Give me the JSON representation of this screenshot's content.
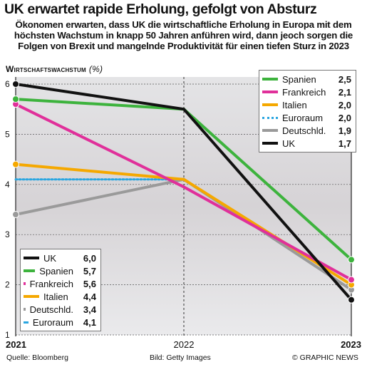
{
  "header": {
    "title": "UK erwartet rapide Erholung, gefolgt von Absturz",
    "subtitle": "Ökonomen erwarten, dass UK die wirtschaftliche Erholung  in Europa mit dem höchsten Wachstum in knapp 50 Jahren anführen wird, dann jeoch sorgen die Folgen von Brexit und mangelnde Produktivität für einen tiefen Sturz in 2023"
  },
  "footer": {
    "source": "Quelle: Bloomberg",
    "image_credit": "Bild: Getty Images",
    "copyright": "© GRAPHIC NEWS"
  },
  "chart_data": {
    "type": "line",
    "ylabel": "Wirtschaftswachstum",
    "ylabel_unit": "(%)",
    "x": [
      "2021",
      "2022",
      "2023"
    ],
    "yticks": [
      "1",
      "2",
      "3",
      "4",
      "5",
      "6"
    ],
    "ylim": [
      1,
      6
    ],
    "grid": true,
    "series": [
      {
        "name": "UK",
        "values": [
          6.0,
          5.5,
          1.7
        ],
        "color": "#111111",
        "style": "solid",
        "label_2021": "6,0",
        "label_2023": "1,7"
      },
      {
        "name": "Spanien",
        "values": [
          5.7,
          5.5,
          2.5
        ],
        "color": "#3db33d",
        "style": "solid",
        "label_2021": "5,7",
        "label_2023": "2,5"
      },
      {
        "name": "Frankreich",
        "values": [
          5.6,
          3.95,
          2.1
        ],
        "color": "#e0309a",
        "style": "solid",
        "label_2021": "5,6",
        "label_2023": "2,1"
      },
      {
        "name": "Italien",
        "values": [
          4.4,
          4.1,
          2.0
        ],
        "color": "#f5a800",
        "style": "solid",
        "label_2021": "4,4",
        "label_2023": "2,0"
      },
      {
        "name": "Deutschld.",
        "values": [
          3.4,
          4.1,
          1.9
        ],
        "color": "#9a9a9a",
        "style": "solid",
        "label_2021": "3,4",
        "label_2023": "1,9"
      },
      {
        "name": "Euroraum",
        "values": [
          4.1,
          4.1,
          2.0
        ],
        "color": "#2aa6e0",
        "style": "dotted",
        "label_2021": "4,1",
        "label_2023": "2,0"
      }
    ],
    "legend_2021_order": [
      "UK",
      "Spanien",
      "Frankreich",
      "Italien",
      "Deutschld.",
      "Euroraum"
    ],
    "legend_2023_order": [
      "Spanien",
      "Frankreich",
      "Italien",
      "Euroraum",
      "Deutschld.",
      "UK"
    ],
    "legend_placement": [
      "bottom-left",
      "top-right"
    ]
  }
}
